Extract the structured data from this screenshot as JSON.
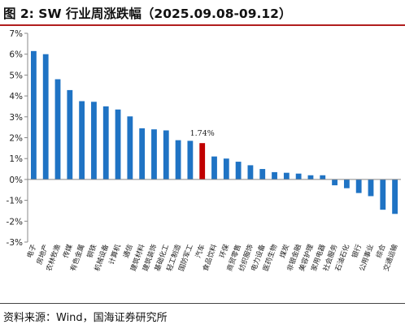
{
  "header": {
    "title": "图 2:  SW 行业周涨跌幅（2025.09.08-09.12）"
  },
  "footer": {
    "source": "资料来源：Wind，国海证券研究所"
  },
  "colors": {
    "bar": "#1f73c4",
    "highlight": "#c00000",
    "accent_rule": "#b11e1e"
  },
  "chart_data": {
    "type": "bar",
    "title": "",
    "xlabel": "",
    "ylabel": "",
    "ylim": [
      -3,
      7
    ],
    "yticks": [
      "-3%",
      "-2%",
      "-1%",
      "0%",
      "1%",
      "2%",
      "3%",
      "4%",
      "5%",
      "6%",
      "7%"
    ],
    "yunit": "%",
    "grid": false,
    "legend": "none",
    "categories": [
      "电子",
      "房地产",
      "农林牧渔",
      "传媒",
      "有色金属",
      "钢铁",
      "机械设备",
      "计算机",
      "通信",
      "建筑材料",
      "建筑装饰",
      "基础化工",
      "轻工制造",
      "国防军工",
      "汽车",
      "食品饮料",
      "环保",
      "商贸零售",
      "纺织服饰",
      "电力设备",
      "医药生物",
      "煤炭",
      "非银金融",
      "美容护理",
      "家用电器",
      "社会服务",
      "石油石化",
      "银行",
      "公用事业",
      "综合",
      "交通运输"
    ],
    "values": [
      6.15,
      6.0,
      4.8,
      4.28,
      3.75,
      3.72,
      3.5,
      3.35,
      3.02,
      2.45,
      2.4,
      2.35,
      1.88,
      1.85,
      1.74,
      1.1,
      1.0,
      0.85,
      0.68,
      0.5,
      0.35,
      0.32,
      0.28,
      0.2,
      0.2,
      -0.28,
      -0.42,
      -0.65,
      -0.8,
      -1.45,
      -1.65
    ],
    "highlight_index": 14,
    "annotation": "1.74%"
  }
}
